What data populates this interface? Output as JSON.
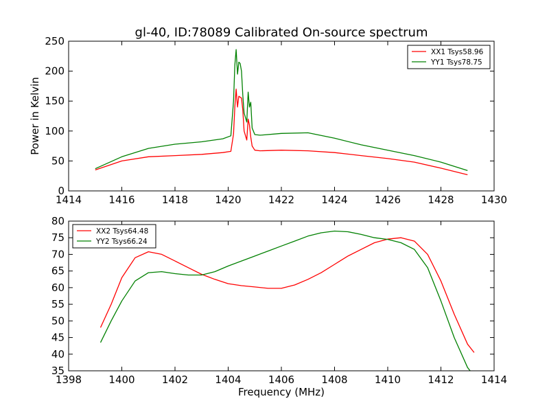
{
  "chart_data": [
    {
      "type": "line",
      "title": "gl-40, ID:78089 Calibrated On-source spectrum",
      "xlabel": "",
      "ylabel": "Power in Kelvin",
      "xlim": [
        1414,
        1430
      ],
      "ylim": [
        0,
        250
      ],
      "xticks": [
        "1414",
        "1416",
        "1418",
        "1420",
        "1422",
        "1424",
        "1426",
        "1428",
        "1430"
      ],
      "yticks": [
        "0",
        "50",
        "100",
        "150",
        "200",
        "250"
      ],
      "legend_position": "top-right",
      "series": [
        {
          "name": "XX1 Tsys58.96",
          "color": "#ff0000",
          "x": [
            1415.0,
            1416.0,
            1417.0,
            1418.0,
            1419.0,
            1419.8,
            1420.1,
            1420.2,
            1420.25,
            1420.3,
            1420.35,
            1420.4,
            1420.5,
            1420.55,
            1420.6,
            1420.7,
            1420.75,
            1420.8,
            1420.85,
            1420.9,
            1421.0,
            1421.2,
            1422.0,
            1423.0,
            1424.0,
            1425.0,
            1426.0,
            1427.0,
            1428.0,
            1429.0
          ],
          "y": [
            35,
            50,
            57,
            59,
            61,
            64,
            66,
            95,
            140,
            170,
            140,
            158,
            155,
            135,
            100,
            85,
            120,
            110,
            90,
            75,
            68,
            67,
            68,
            67,
            64,
            59,
            54,
            48,
            38,
            27
          ]
        },
        {
          "name": "YY1 Tsys78.75",
          "color": "#008000",
          "x": [
            1415.0,
            1416.0,
            1417.0,
            1418.0,
            1419.0,
            1419.8,
            1420.1,
            1420.2,
            1420.25,
            1420.3,
            1420.35,
            1420.4,
            1420.45,
            1420.5,
            1420.55,
            1420.6,
            1420.7,
            1420.75,
            1420.8,
            1420.85,
            1420.9,
            1421.0,
            1421.2,
            1422.0,
            1423.0,
            1424.0,
            1425.0,
            1426.0,
            1427.0,
            1428.0,
            1429.0
          ],
          "y": [
            37,
            57,
            71,
            78,
            82,
            87,
            92,
            150,
            210,
            236,
            195,
            215,
            213,
            200,
            160,
            130,
            115,
            165,
            140,
            148,
            105,
            94,
            93,
            96,
            97,
            88,
            77,
            68,
            59,
            48,
            34
          ]
        }
      ]
    },
    {
      "type": "line",
      "title": "",
      "xlabel": "Frequency (MHz)",
      "ylabel": "",
      "xlim": [
        1398,
        1414
      ],
      "ylim": [
        35,
        80
      ],
      "xticks": [
        "1398",
        "1400",
        "1402",
        "1404",
        "1406",
        "1408",
        "1410",
        "1412",
        "1414"
      ],
      "yticks": [
        "35",
        "40",
        "45",
        "50",
        "55",
        "60",
        "65",
        "70",
        "75",
        "80"
      ],
      "legend_position": "top-left",
      "series": [
        {
          "name": "XX2 Tsys64.48",
          "color": "#ff0000",
          "x": [
            1399.2,
            1399.6,
            1400.0,
            1400.5,
            1401.0,
            1401.5,
            1402.0,
            1402.5,
            1403.0,
            1403.5,
            1404.0,
            1404.5,
            1405.0,
            1405.5,
            1406.0,
            1406.5,
            1407.0,
            1407.5,
            1408.0,
            1408.5,
            1409.0,
            1409.5,
            1410.0,
            1410.5,
            1411.0,
            1411.5,
            1412.0,
            1412.5,
            1413.0,
            1413.25
          ],
          "y": [
            48,
            55,
            63,
            69,
            70.8,
            70,
            68,
            66,
            64,
            62.5,
            61.2,
            60.6,
            60.2,
            59.8,
            59.8,
            60.8,
            62.5,
            64.5,
            67,
            69.5,
            71.5,
            73.5,
            74.6,
            75,
            74,
            70,
            62,
            52,
            43,
            40.5
          ]
        },
        {
          "name": "YY2 Tsys66.24",
          "color": "#008000",
          "x": [
            1399.2,
            1399.6,
            1400.0,
            1400.5,
            1401.0,
            1401.5,
            1402.0,
            1402.5,
            1403.0,
            1403.5,
            1404.0,
            1404.5,
            1405.0,
            1405.5,
            1406.0,
            1406.5,
            1407.0,
            1407.5,
            1408.0,
            1408.5,
            1409.0,
            1409.5,
            1410.0,
            1410.5,
            1411.0,
            1411.5,
            1412.0,
            1412.5,
            1413.0,
            1413.1
          ],
          "y": [
            43.5,
            50,
            56,
            62,
            64.5,
            64.8,
            64.2,
            63.8,
            63.8,
            64.8,
            66.5,
            68,
            69.5,
            71,
            72.5,
            74,
            75.5,
            76.5,
            77,
            76.8,
            76,
            75,
            74.5,
            73.5,
            71.5,
            66,
            56,
            45,
            36,
            35
          ]
        }
      ]
    }
  ]
}
